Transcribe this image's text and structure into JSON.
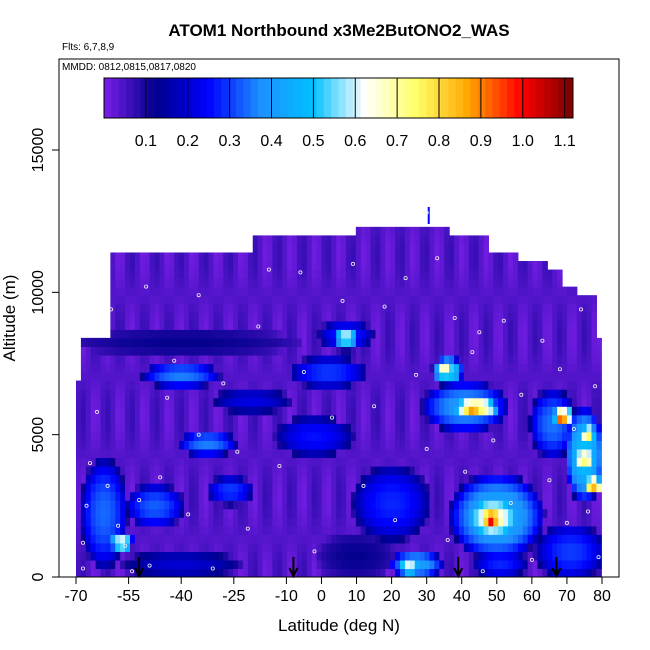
{
  "chart_data": {
    "type": "heatmap",
    "title": "ATOM1 Northbound x3Me2ButONO2_WAS",
    "annotations": {
      "flights": "Flts: 6,7,8,9",
      "dates": "MMDD: 0812,0815,0817,0820"
    },
    "xlabel": "Latitude (deg N)",
    "ylabel": "Altitude (m)",
    "xlim": [
      -70,
      80
    ],
    "ylim": [
      0,
      17000
    ],
    "x_ticks": [
      -70,
      -55,
      -40,
      -25,
      -10,
      0,
      10,
      20,
      30,
      40,
      50,
      60,
      70,
      80
    ],
    "y_ticks": [
      0,
      5000,
      10000,
      15000
    ],
    "colorbar": {
      "range": [
        0,
        1.12
      ],
      "ticks": [
        0.1,
        0.2,
        0.3,
        0.4,
        0.5,
        0.6,
        0.7,
        0.8,
        0.9,
        1.0,
        1.1
      ],
      "tick_labels": [
        "0.1",
        "0.2",
        "0.3",
        "0.4",
        "0.5",
        "0.6",
        "0.7",
        "0.8",
        "0.9",
        "1.0",
        "1.1"
      ],
      "colors": [
        "#7a1fe8",
        "#00008b",
        "#0000ff",
        "#1e90ff",
        "#00bfff",
        "#ffffff",
        "#ffff66",
        "#ffa500",
        "#ff0000",
        "#7a0000"
      ]
    },
    "profile_markers_lat": [
      -52,
      -8,
      39,
      67
    ],
    "ceiling": [
      {
        "x0": -60,
        "x1": -20,
        "top": 11400
      },
      {
        "x0": -20,
        "x1": 10,
        "top": 11900
      },
      {
        "x0": 10,
        "x1": 36,
        "top": 12400
      },
      {
        "x0": 36,
        "x1": 48,
        "top": 11900
      },
      {
        "x0": 48,
        "x1": 56,
        "top": 11400
      },
      {
        "x0": 56,
        "x1": 64,
        "top": 11000
      },
      {
        "x0": 64,
        "x1": 68,
        "top": 10700
      },
      {
        "x0": 68,
        "x1": 73,
        "top": 10300
      },
      {
        "x0": 73,
        "x1": 78,
        "top": 9800
      }
    ],
    "left_edge": [
      {
        "y0": 0,
        "y1": 7000,
        "x": -70
      },
      {
        "y0": 7000,
        "y1": 8500,
        "x": -68
      },
      {
        "y0": 8500,
        "y1": 11400,
        "x": -60
      }
    ],
    "right_edge": [
      {
        "y0": 0,
        "y1": 8500,
        "x": 80
      },
      {
        "y0": 8500,
        "y1": 9800,
        "x": 78
      }
    ],
    "background_value": 0.04,
    "features": [
      {
        "lat": [
          -68,
          -56
        ],
        "alt": [
          500,
          4000
        ],
        "value": 0.34
      },
      {
        "lat": [
          -60,
          -54
        ],
        "alt": [
          900,
          1600
        ],
        "value": 0.62
      },
      {
        "lat": [
          -55,
          -40
        ],
        "alt": [
          1800,
          3200
        ],
        "value": 0.33
      },
      {
        "lat": [
          -50,
          -30
        ],
        "alt": [
          6700,
          7500
        ],
        "value": 0.36
      },
      {
        "lat": [
          -40,
          -25
        ],
        "alt": [
          4300,
          5100
        ],
        "value": 0.36
      },
      {
        "lat": [
          -32,
          -20
        ],
        "alt": [
          2600,
          3500
        ],
        "value": 0.3
      },
      {
        "lat": [
          -55,
          -25
        ],
        "alt": [
          0,
          900
        ],
        "value": 0.2
      },
      {
        "lat": [
          -68,
          -10
        ],
        "alt": [
          7800,
          8700
        ],
        "value": 0.12
      },
      {
        "lat": [
          -30,
          -10
        ],
        "alt": [
          5800,
          6600
        ],
        "value": 0.22
      },
      {
        "lat": [
          -12,
          8
        ],
        "alt": [
          4300,
          5600
        ],
        "value": 0.26
      },
      {
        "lat": [
          -8,
          12
        ],
        "alt": [
          6700,
          7700
        ],
        "value": 0.3
      },
      {
        "lat": [
          0,
          14
        ],
        "alt": [
          8000,
          9000
        ],
        "value": 0.28
      },
      {
        "lat": [
          4,
          10
        ],
        "alt": [
          8100,
          8800
        ],
        "value": 0.6
      },
      {
        "lat": [
          10,
          30
        ],
        "alt": [
          1400,
          3800
        ],
        "value": 0.28
      },
      {
        "lat": [
          20,
          34
        ],
        "alt": [
          0,
          900
        ],
        "value": 0.42
      },
      {
        "lat": [
          22,
          28
        ],
        "alt": [
          100,
          600
        ],
        "value": 0.65
      },
      {
        "lat": [
          30,
          52
        ],
        "alt": [
          5200,
          6800
        ],
        "value": 0.4
      },
      {
        "lat": [
          38,
          50
        ],
        "alt": [
          5600,
          6300
        ],
        "value": 0.78
      },
      {
        "lat": [
          40,
          46
        ],
        "alt": [
          5700,
          6100
        ],
        "value": 0.9
      },
      {
        "lat": [
          32,
          40
        ],
        "alt": [
          6800,
          7700
        ],
        "value": 0.55
      },
      {
        "lat": [
          33,
          37
        ],
        "alt": [
          7000,
          7500
        ],
        "value": 0.75
      },
      {
        "lat": [
          38,
          62
        ],
        "alt": [
          800,
          3500
        ],
        "value": 0.45
      },
      {
        "lat": [
          42,
          56
        ],
        "alt": [
          1400,
          2800
        ],
        "value": 0.68
      },
      {
        "lat": [
          45,
          52
        ],
        "alt": [
          1600,
          2500
        ],
        "value": 0.9
      },
      {
        "lat": [
          47,
          50
        ],
        "alt": [
          1700,
          2300
        ],
        "value": 1.02
      },
      {
        "lat": [
          60,
          72
        ],
        "alt": [
          4300,
          6500
        ],
        "value": 0.35
      },
      {
        "lat": [
          66,
          72
        ],
        "alt": [
          5300,
          6000
        ],
        "value": 0.72
      },
      {
        "lat": [
          67,
          70
        ],
        "alt": [
          5400,
          5900
        ],
        "value": 1.05
      },
      {
        "lat": [
          70,
          80
        ],
        "alt": [
          2800,
          5800
        ],
        "value": 0.5
      },
      {
        "lat": [
          72,
          78
        ],
        "alt": [
          3800,
          4500
        ],
        "value": 0.75
      },
      {
        "lat": [
          75,
          80
        ],
        "alt": [
          3000,
          3500
        ],
        "value": 0.9
      },
      {
        "lat": [
          74,
          78
        ],
        "alt": [
          4800,
          5300
        ],
        "value": 0.8
      },
      {
        "lat": [
          62,
          80
        ],
        "alt": [
          0,
          1800
        ],
        "value": 0.3
      },
      {
        "lat": [
          44,
          58
        ],
        "alt": [
          0,
          1000
        ],
        "value": 0.28
      },
      {
        "lat": [
          0,
          20
        ],
        "alt": [
          0,
          1500
        ],
        "value": 0.12
      }
    ],
    "sample_points": [
      [
        -68,
        300
      ],
      [
        -68,
        1200
      ],
      [
        -67,
        2500
      ],
      [
        -66,
        4000
      ],
      [
        -64,
        5800
      ],
      [
        -61,
        3200
      ],
      [
        -58,
        1800
      ],
      [
        -56,
        1100
      ],
      [
        -54,
        200
      ],
      [
        -52,
        2700
      ],
      [
        -49,
        400
      ],
      [
        -46,
        3500
      ],
      [
        -44,
        6300
      ],
      [
        -42,
        7600
      ],
      [
        -38,
        2200
      ],
      [
        -35,
        5000
      ],
      [
        -31,
        300
      ],
      [
        -28,
        6800
      ],
      [
        -24,
        4400
      ],
      [
        -21,
        1700
      ],
      [
        -18,
        8800
      ],
      [
        -15,
        10800
      ],
      [
        -12,
        3900
      ],
      [
        -6,
        10700
      ],
      [
        -2,
        900
      ],
      [
        3,
        5600
      ],
      [
        6,
        9700
      ],
      [
        9,
        11000
      ],
      [
        12,
        3200
      ],
      [
        15,
        6000
      ],
      [
        18,
        9500
      ],
      [
        21,
        2000
      ],
      [
        24,
        10500
      ],
      [
        27,
        7100
      ],
      [
        30,
        4500
      ],
      [
        33,
        11200
      ],
      [
        36,
        1300
      ],
      [
        38,
        9100
      ],
      [
        41,
        3700
      ],
      [
        43,
        7900
      ],
      [
        46,
        200
      ],
      [
        49,
        4800
      ],
      [
        52,
        9000
      ],
      [
        54,
        2600
      ],
      [
        57,
        6400
      ],
      [
        60,
        600
      ],
      [
        63,
        8300
      ],
      [
        65,
        3400
      ],
      [
        68,
        7300
      ],
      [
        70,
        1900
      ],
      [
        72,
        5200
      ],
      [
        74,
        9400
      ],
      [
        76,
        2300
      ],
      [
        78,
        6700
      ],
      [
        79,
        700
      ],
      [
        -60,
        9400
      ],
      [
        -50,
        10200
      ],
      [
        -35,
        9900
      ],
      [
        -5,
        7200
      ],
      [
        45,
        8600
      ],
      [
        30,
        12800
      ]
    ]
  }
}
